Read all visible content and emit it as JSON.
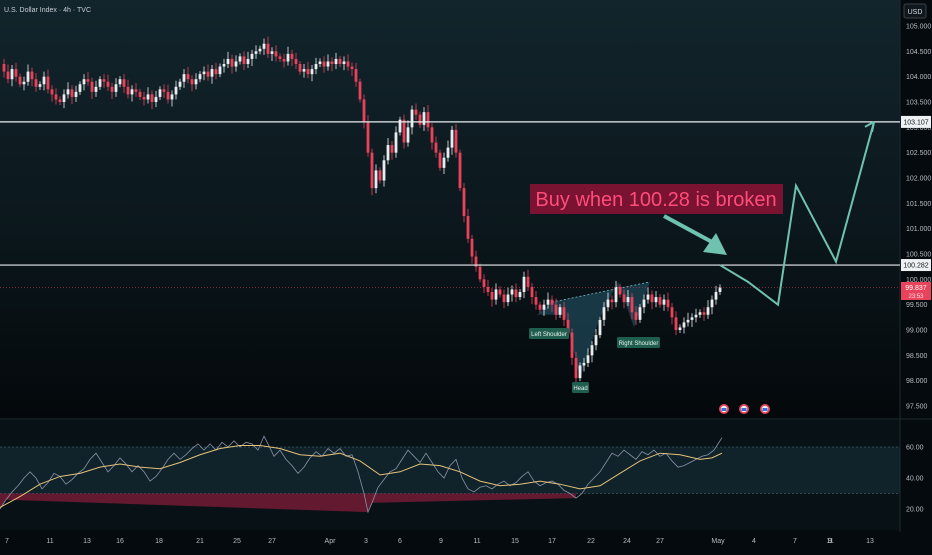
{
  "header": {
    "symbol_line": "U.S. Dollar Index · 4h · TVC",
    "currency_button": "USD"
  },
  "chart_data": {
    "type": "candlestick",
    "title": "U.S. Dollar Index · 4h · TVC",
    "price_axis": {
      "ylim": [
        97.5,
        105.0
      ],
      "ticks": [
        "105.000",
        "104.500",
        "104.000",
        "103.500",
        "103.000",
        "102.500",
        "102.000",
        "101.500",
        "101.000",
        "100.500",
        "100.000",
        "99.500",
        "99.000",
        "98.500",
        "98.000",
        "97.500"
      ]
    },
    "x_labels": [
      "7",
      "11",
      "13",
      "16",
      "18",
      "21",
      "25",
      "27",
      "Apr",
      "3",
      "6",
      "9",
      "11",
      "15",
      "17",
      "22",
      "24",
      "27",
      "May",
      "4",
      "7",
      "9",
      "11",
      "13"
    ],
    "horizontal_levels": [
      {
        "label": "103.107",
        "value": 103.107
      },
      {
        "label": "100.282",
        "value": 100.282
      }
    ],
    "last_price": {
      "label": "99.837",
      "timer": "23:53",
      "value": 99.837
    },
    "close_path": [
      [
        0,
        104.25
      ],
      [
        4,
        104.1
      ],
      [
        8,
        103.95
      ],
      [
        12,
        104.15
      ],
      [
        16,
        104.0
      ],
      [
        20,
        103.85
      ],
      [
        24,
        103.9
      ],
      [
        28,
        104.1
      ],
      [
        32,
        103.95
      ],
      [
        36,
        103.8
      ],
      [
        40,
        103.85
      ],
      [
        44,
        104.0
      ],
      [
        48,
        103.75
      ],
      [
        52,
        103.65
      ],
      [
        56,
        103.55
      ],
      [
        60,
        103.5
      ],
      [
        64,
        103.65
      ],
      [
        68,
        103.75
      ],
      [
        72,
        103.6
      ],
      [
        76,
        103.7
      ],
      [
        80,
        103.85
      ],
      [
        84,
        103.95
      ],
      [
        88,
        103.9
      ],
      [
        92,
        103.7
      ],
      [
        96,
        103.8
      ],
      [
        100,
        103.95
      ],
      [
        104,
        103.9
      ],
      [
        108,
        103.8
      ],
      [
        112,
        103.7
      ],
      [
        116,
        103.85
      ],
      [
        120,
        103.95
      ],
      [
        124,
        103.8
      ],
      [
        128,
        103.65
      ],
      [
        132,
        103.75
      ],
      [
        136,
        103.7
      ],
      [
        140,
        103.6
      ],
      [
        144,
        103.55
      ],
      [
        148,
        103.65
      ],
      [
        152,
        103.5
      ],
      [
        156,
        103.6
      ],
      [
        160,
        103.75
      ],
      [
        164,
        103.7
      ],
      [
        168,
        103.55
      ],
      [
        172,
        103.65
      ],
      [
        176,
        103.8
      ],
      [
        180,
        103.9
      ],
      [
        184,
        104.05
      ],
      [
        188,
        103.95
      ],
      [
        192,
        103.85
      ],
      [
        196,
        103.95
      ],
      [
        200,
        104.05
      ],
      [
        204,
        104.1
      ],
      [
        208,
        104.0
      ],
      [
        212,
        104.15
      ],
      [
        216,
        104.05
      ],
      [
        220,
        104.2
      ],
      [
        224,
        104.25
      ],
      [
        228,
        104.35
      ],
      [
        232,
        104.2
      ],
      [
        236,
        104.3
      ],
      [
        240,
        104.4
      ],
      [
        244,
        104.25
      ],
      [
        248,
        104.35
      ],
      [
        252,
        104.45
      ],
      [
        256,
        104.5
      ],
      [
        260,
        104.55
      ],
      [
        264,
        104.65
      ],
      [
        268,
        104.45
      ],
      [
        272,
        104.5
      ],
      [
        276,
        104.4
      ],
      [
        280,
        104.35
      ],
      [
        284,
        104.3
      ],
      [
        288,
        104.45
      ],
      [
        292,
        104.35
      ],
      [
        296,
        104.25
      ],
      [
        300,
        104.1
      ],
      [
        304,
        104.15
      ],
      [
        308,
        104.05
      ],
      [
        312,
        104.15
      ],
      [
        316,
        104.25
      ],
      [
        320,
        104.3
      ],
      [
        324,
        104.2
      ],
      [
        328,
        104.3
      ],
      [
        332,
        104.25
      ],
      [
        336,
        104.35
      ],
      [
        340,
        104.25
      ],
      [
        344,
        104.3
      ],
      [
        348,
        104.2
      ],
      [
        352,
        104.15
      ],
      [
        356,
        103.9
      ],
      [
        360,
        103.55
      ],
      [
        364,
        103.1
      ],
      [
        368,
        102.5
      ],
      [
        372,
        101.8
      ],
      [
        376,
        102.15
      ],
      [
        380,
        101.95
      ],
      [
        384,
        102.35
      ],
      [
        388,
        102.65
      ],
      [
        392,
        102.5
      ],
      [
        396,
        102.9
      ],
      [
        400,
        103.15
      ],
      [
        404,
        102.7
      ],
      [
        408,
        103.0
      ],
      [
        412,
        103.35
      ],
      [
        416,
        103.25
      ],
      [
        420,
        103.05
      ],
      [
        424,
        103.3
      ],
      [
        428,
        103.0
      ],
      [
        432,
        102.7
      ],
      [
        436,
        102.5
      ],
      [
        440,
        102.2
      ],
      [
        444,
        102.4
      ],
      [
        448,
        102.6
      ],
      [
        452,
        102.95
      ],
      [
        456,
        102.5
      ],
      [
        460,
        101.8
      ],
      [
        464,
        101.25
      ],
      [
        468,
        100.8
      ],
      [
        472,
        100.45
      ],
      [
        476,
        100.25
      ],
      [
        480,
        100.0
      ],
      [
        484,
        99.85
      ],
      [
        488,
        99.75
      ],
      [
        492,
        99.6
      ],
      [
        496,
        99.8
      ],
      [
        500,
        99.7
      ],
      [
        504,
        99.55
      ],
      [
        508,
        99.7
      ],
      [
        512,
        99.8
      ],
      [
        516,
        99.65
      ],
      [
        520,
        99.75
      ],
      [
        524,
        100.05
      ],
      [
        528,
        99.85
      ],
      [
        532,
        99.65
      ],
      [
        536,
        99.5
      ],
      [
        540,
        99.4
      ],
      [
        544,
        99.5
      ],
      [
        548,
        99.6
      ],
      [
        552,
        99.5
      ],
      [
        556,
        99.3
      ],
      [
        560,
        99.45
      ],
      [
        564,
        99.2
      ],
      [
        568,
        98.95
      ],
      [
        572,
        98.45
      ],
      [
        576,
        98.05
      ],
      [
        580,
        98.3
      ],
      [
        584,
        98.35
      ],
      [
        588,
        98.5
      ],
      [
        592,
        98.7
      ],
      [
        596,
        98.9
      ],
      [
        600,
        99.2
      ],
      [
        604,
        99.45
      ],
      [
        608,
        99.6
      ],
      [
        612,
        99.55
      ],
      [
        616,
        99.85
      ],
      [
        620,
        99.7
      ],
      [
        624,
        99.55
      ],
      [
        628,
        99.65
      ],
      [
        632,
        99.35
      ],
      [
        636,
        99.2
      ],
      [
        640,
        99.45
      ],
      [
        644,
        99.6
      ],
      [
        648,
        99.7
      ],
      [
        652,
        99.55
      ],
      [
        656,
        99.65
      ],
      [
        660,
        99.5
      ],
      [
        664,
        99.6
      ],
      [
        668,
        99.45
      ],
      [
        672,
        99.25
      ],
      [
        676,
        99.0
      ],
      [
        680,
        99.05
      ],
      [
        684,
        99.15
      ],
      [
        688,
        99.2
      ],
      [
        692,
        99.25
      ],
      [
        696,
        99.3
      ],
      [
        700,
        99.35
      ],
      [
        704,
        99.3
      ],
      [
        708,
        99.45
      ],
      [
        712,
        99.6
      ],
      [
        716,
        99.75
      ],
      [
        720,
        99.84
      ]
    ],
    "pattern_labels": {
      "left_shoulder": "Left Shoulder",
      "head": "Head",
      "right_shoulder": "Right Shoulder"
    },
    "annotation": "Buy when 100.28 is broken",
    "projection_path": [
      [
        720,
        100.282
      ],
      [
        748,
        99.95
      ],
      [
        778,
        99.5
      ],
      [
        796,
        101.85
      ],
      [
        836,
        100.35
      ],
      [
        874,
        103.107
      ]
    ],
    "oscillator": {
      "ylim": [
        15,
        70
      ],
      "ticks": [
        "60.00",
        "40.00",
        "20.00"
      ],
      "upper_band": 60,
      "lower_band": 30,
      "osc_path": [
        [
          0,
          20
        ],
        [
          6,
          26
        ],
        [
          12,
          31
        ],
        [
          18,
          35
        ],
        [
          24,
          40
        ],
        [
          30,
          44
        ],
        [
          36,
          40
        ],
        [
          42,
          33
        ],
        [
          48,
          37
        ],
        [
          54,
          43
        ],
        [
          60,
          41
        ],
        [
          66,
          36
        ],
        [
          72,
          39
        ],
        [
          78,
          43
        ],
        [
          84,
          46
        ],
        [
          90,
          52
        ],
        [
          96,
          56
        ],
        [
          102,
          50
        ],
        [
          108,
          44
        ],
        [
          114,
          48
        ],
        [
          120,
          53
        ],
        [
          126,
          49
        ],
        [
          132,
          44
        ],
        [
          138,
          48
        ],
        [
          144,
          44
        ],
        [
          150,
          38
        ],
        [
          156,
          41
        ],
        [
          162,
          46
        ],
        [
          168,
          52
        ],
        [
          174,
          56
        ],
        [
          180,
          52
        ],
        [
          186,
          55
        ],
        [
          192,
          59
        ],
        [
          198,
          62
        ],
        [
          204,
          58
        ],
        [
          210,
          62
        ],
        [
          216,
          58
        ],
        [
          222,
          63
        ],
        [
          228,
          60
        ],
        [
          234,
          64
        ],
        [
          240,
          60
        ],
        [
          246,
          63
        ],
        [
          252,
          62
        ],
        [
          258,
          58
        ],
        [
          264,
          67
        ],
        [
          268,
          62
        ],
        [
          274,
          54
        ],
        [
          280,
          58
        ],
        [
          286,
          52
        ],
        [
          292,
          48
        ],
        [
          298,
          43
        ],
        [
          304,
          47
        ],
        [
          310,
          53
        ],
        [
          316,
          57
        ],
        [
          322,
          54
        ],
        [
          328,
          59
        ],
        [
          334,
          56
        ],
        [
          340,
          59
        ],
        [
          346,
          54
        ],
        [
          352,
          55
        ],
        [
          358,
          44
        ],
        [
          364,
          30
        ],
        [
          368,
          18
        ],
        [
          372,
          24
        ],
        [
          378,
          34
        ],
        [
          384,
          39
        ],
        [
          390,
          44
        ],
        [
          396,
          46
        ],
        [
          402,
          52
        ],
        [
          408,
          58
        ],
        [
          414,
          54
        ],
        [
          420,
          50
        ],
        [
          426,
          56
        ],
        [
          432,
          50
        ],
        [
          438,
          44
        ],
        [
          444,
          40
        ],
        [
          450,
          48
        ],
        [
          456,
          52
        ],
        [
          462,
          40
        ],
        [
          468,
          33
        ],
        [
          474,
          31
        ],
        [
          480,
          34
        ],
        [
          486,
          35
        ],
        [
          492,
          33
        ],
        [
          498,
          36
        ],
        [
          504,
          38
        ],
        [
          510,
          35
        ],
        [
          516,
          37
        ],
        [
          522,
          41
        ],
        [
          528,
          44
        ],
        [
          534,
          38
        ],
        [
          540,
          35
        ],
        [
          546,
          37
        ],
        [
          552,
          38
        ],
        [
          558,
          36
        ],
        [
          564,
          32
        ],
        [
          570,
          30
        ],
        [
          576,
          27
        ],
        [
          582,
          30
        ],
        [
          588,
          36
        ],
        [
          594,
          40
        ],
        [
          600,
          44
        ],
        [
          606,
          50
        ],
        [
          612,
          56
        ],
        [
          618,
          54
        ],
        [
          624,
          58
        ],
        [
          630,
          55
        ],
        [
          636,
          52
        ],
        [
          642,
          57
        ],
        [
          648,
          55
        ],
        [
          654,
          58
        ],
        [
          660,
          54
        ],
        [
          666,
          56
        ],
        [
          672,
          51
        ],
        [
          678,
          47
        ],
        [
          684,
          48
        ],
        [
          690,
          50
        ],
        [
          696,
          52
        ],
        [
          702,
          54
        ],
        [
          708,
          55
        ],
        [
          714,
          58
        ],
        [
          718,
          62
        ],
        [
          722,
          66
        ]
      ],
      "ma_path": [
        [
          0,
          21
        ],
        [
          20,
          28
        ],
        [
          40,
          36
        ],
        [
          60,
          41
        ],
        [
          80,
          43
        ],
        [
          100,
          47
        ],
        [
          120,
          49
        ],
        [
          140,
          47
        ],
        [
          160,
          46
        ],
        [
          180,
          50
        ],
        [
          200,
          55
        ],
        [
          220,
          59
        ],
        [
          240,
          61
        ],
        [
          260,
          61
        ],
        [
          280,
          59
        ],
        [
          300,
          55
        ],
        [
          320,
          54
        ],
        [
          340,
          56
        ],
        [
          360,
          51
        ],
        [
          380,
          42
        ],
        [
          400,
          44
        ],
        [
          420,
          49
        ],
        [
          440,
          48
        ],
        [
          460,
          44
        ],
        [
          480,
          38
        ],
        [
          500,
          35
        ],
        [
          520,
          36
        ],
        [
          540,
          38
        ],
        [
          560,
          36
        ],
        [
          580,
          33
        ],
        [
          600,
          35
        ],
        [
          620,
          43
        ],
        [
          640,
          51
        ],
        [
          660,
          56
        ],
        [
          680,
          55
        ],
        [
          700,
          52
        ],
        [
          712,
          53
        ],
        [
          722,
          56
        ]
      ]
    }
  },
  "colors": {
    "background": "#050a0e",
    "up_candle": "#e8ecef",
    "down_candle": "#e8435a",
    "annotation_box": "#7a1232",
    "annotation_text": "#ff4d7a",
    "projection": "#6fc2b0",
    "pattern_fill": "#1f4657",
    "oscillator_line": "#8a93a8",
    "oscillator_ma": "#e6c27a",
    "band_fill": "#17333d"
  }
}
